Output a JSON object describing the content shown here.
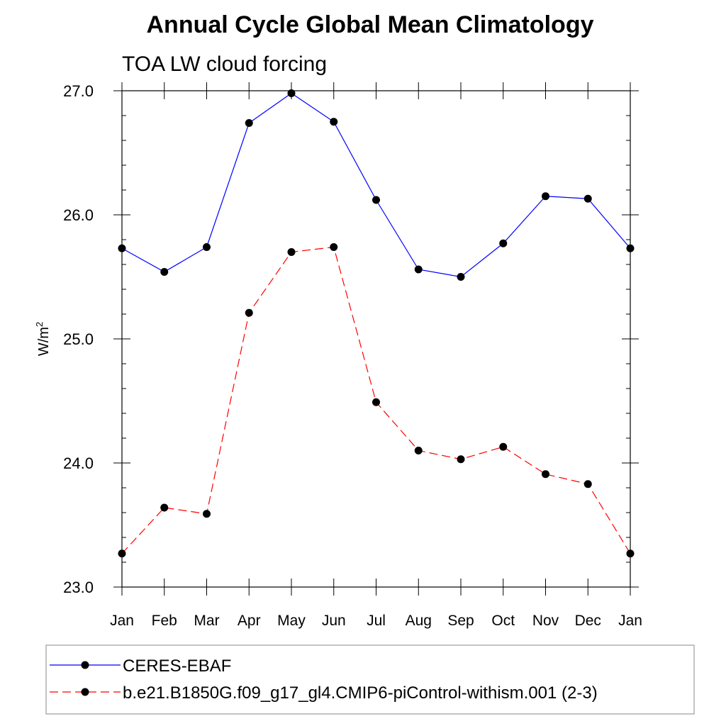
{
  "chart_data": {
    "type": "line",
    "title": "Annual Cycle Global Mean Climatology",
    "subtitle": "TOA LW cloud forcing",
    "ylabel": "W/m",
    "ylabel_sup": "2",
    "ylim": [
      23.0,
      27.0
    ],
    "yticks": [
      "23.0",
      "24.0",
      "25.0",
      "26.0",
      "27.0"
    ],
    "categories": [
      "Jan",
      "Feb",
      "Mar",
      "Apr",
      "May",
      "Jun",
      "Jul",
      "Aug",
      "Sep",
      "Oct",
      "Nov",
      "Dec",
      "Jan"
    ],
    "series": [
      {
        "name": "CERES-EBAF",
        "color": "#0000ff",
        "dash": "solid",
        "values": [
          25.73,
          25.54,
          25.74,
          26.74,
          26.98,
          26.75,
          26.12,
          25.56,
          25.5,
          25.77,
          26.15,
          26.13,
          25.73
        ]
      },
      {
        "name": "b.e21.B1850G.f09_g17_gl4.CMIP6-piControl-withism.001 (2-3)",
        "color": "#ff0000",
        "dash": "dashed",
        "values": [
          23.27,
          23.64,
          23.59,
          25.21,
          25.7,
          25.74,
          24.49,
          24.1,
          24.03,
          24.13,
          23.91,
          23.83,
          23.27
        ]
      }
    ]
  }
}
